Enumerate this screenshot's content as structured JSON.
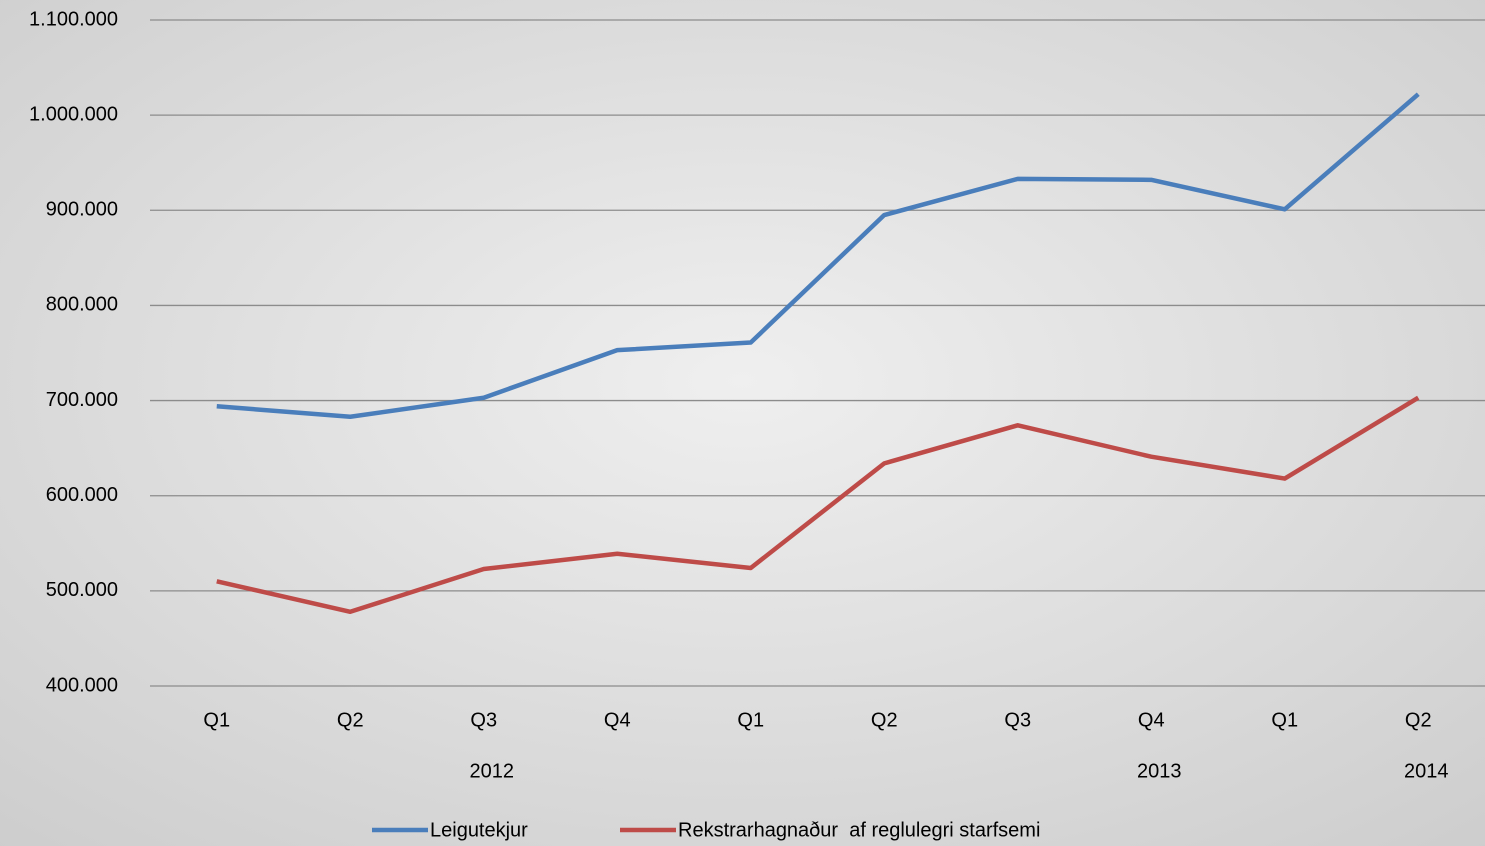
{
  "chart_data": {
    "type": "line",
    "categories": [
      "Q1",
      "Q2",
      "Q3",
      "Q4",
      "Q1",
      "Q2",
      "Q3",
      "Q4",
      "Q1",
      "Q2"
    ],
    "category_groups": [
      null,
      null,
      "2012",
      null,
      null,
      null,
      null,
      "2013",
      null,
      "2014"
    ],
    "series": [
      {
        "name": "Leigutekjur",
        "color": "#4a7ebb",
        "values": [
          694000,
          683000,
          703000,
          753000,
          761000,
          895000,
          933000,
          932000,
          901000,
          1022000
        ]
      },
      {
        "name": "Rekstrarhagnaður  af reglulegri starfsemi",
        "color": "#be4b48",
        "values": [
          510000,
          478000,
          523000,
          539000,
          524000,
          634000,
          674000,
          641000,
          618000,
          703000
        ]
      }
    ],
    "ylim": [
      400000,
      1100000
    ],
    "yticks": [
      {
        "value": 400000,
        "label": "400.000"
      },
      {
        "value": 500000,
        "label": "500.000"
      },
      {
        "value": 600000,
        "label": "600.000"
      },
      {
        "value": 700000,
        "label": "700.000"
      },
      {
        "value": 800000,
        "label": "800.000"
      },
      {
        "value": 900000,
        "label": "900.000"
      },
      {
        "value": 1000000,
        "label": "1.000.000"
      },
      {
        "value": 1100000,
        "label": "1.100.000"
      }
    ],
    "grid": true,
    "legend": "bottom"
  }
}
